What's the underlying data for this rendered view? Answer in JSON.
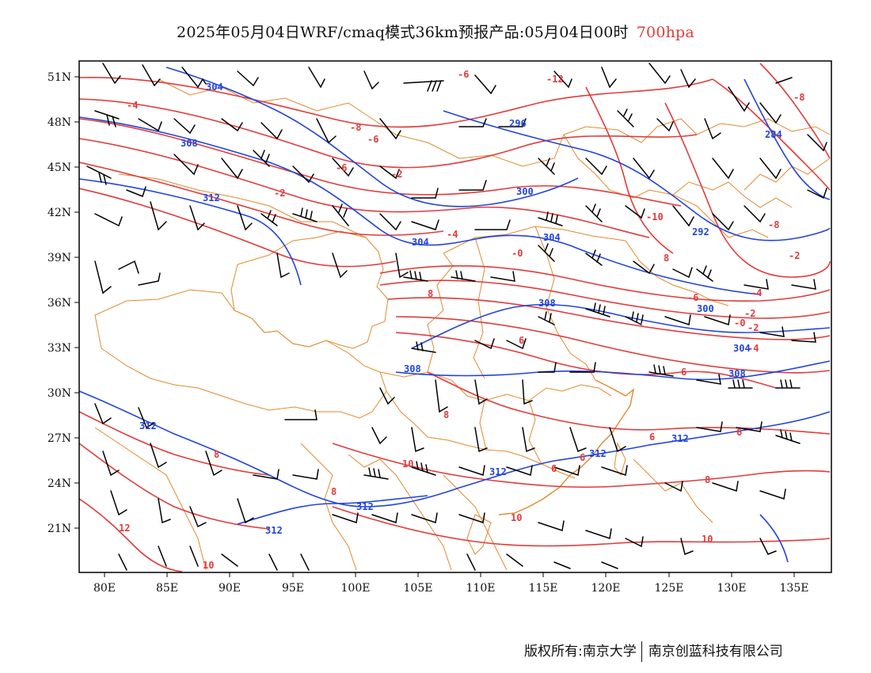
{
  "title": {
    "main": "2025年05月04日WRF/cmaq模式36km预报产品:05月04日00时",
    "level": "700hpa",
    "level_color": "#e23b3b"
  },
  "colors": {
    "temperature": "#e23b3b",
    "geopotential": "#2244dd",
    "wind": "#000000",
    "boundaries": "#e08a2e"
  },
  "axes": {
    "lat_labels": [
      "51N",
      "48N",
      "45N",
      "42N",
      "39N",
      "36N",
      "33N",
      "30N",
      "27N",
      "24N",
      "21N"
    ],
    "lon_labels": [
      "80E",
      "85E",
      "90E",
      "95E",
      "100E",
      "105E",
      "110E",
      "115E",
      "120E",
      "125E",
      "130E",
      "135E"
    ]
  },
  "contour_labels": {
    "temperature": [
      "-4",
      "-6",
      "-8",
      "-10",
      "-12",
      "-6",
      "-8",
      "-6",
      "-2",
      "-2",
      "-4",
      "-6",
      "-2",
      "-0",
      "-10",
      "-8",
      "-8",
      "-4",
      "-6",
      "-6",
      "-2",
      "-0",
      "-2",
      "-4",
      "6",
      "6",
      "8",
      "6",
      "8",
      "6",
      "8",
      "10",
      "8",
      "6",
      "6",
      "10",
      "8",
      "12",
      "10",
      "10"
    ],
    "geopotential": [
      "304",
      "308",
      "312",
      "296",
      "300",
      "304",
      "284",
      "292",
      "304",
      "308",
      "300",
      "304",
      "308",
      "312",
      "312",
      "312",
      "312",
      "312",
      "308"
    ]
  },
  "footer": {
    "copyright_left": "版权所有:南京大学",
    "copyright_right": "南京创蓝科技有限公司"
  }
}
